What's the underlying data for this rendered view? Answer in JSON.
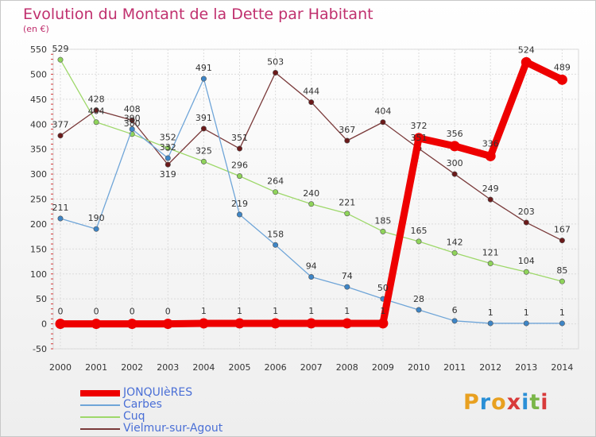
{
  "title": "Evolution du Montant de la Dette par Habitant",
  "unit": "(en €)",
  "logo": "Proxiti",
  "logo_colors": [
    "#e8a020",
    "#2a8fd6",
    "#e8a020",
    "#d83a3a",
    "#2a8fd6",
    "#7ab648",
    "#d83a3a"
  ],
  "chart_data": {
    "type": "line",
    "x": [
      "2000",
      "2001",
      "2002",
      "2003",
      "2004",
      "2005",
      "2006",
      "2007",
      "2008",
      "2009",
      "2010",
      "2011",
      "2012",
      "2013",
      "2014"
    ],
    "ylim": [
      -50,
      550
    ],
    "yticks": [
      -50,
      0,
      50,
      100,
      150,
      200,
      250,
      300,
      350,
      400,
      450,
      500,
      550
    ],
    "grid": true,
    "legend_position": "bottom-left",
    "series": [
      {
        "name": "Vielmur-sur-Agout",
        "color": "#6b1a1a",
        "line_color": "#7a3a3a",
        "values": [
          377,
          428,
          408,
          319,
          391,
          351,
          503,
          444,
          367,
          404,
          351,
          300,
          249,
          203,
          167
        ],
        "labels": [
          "377",
          "428",
          "408",
          "319",
          "391",
          "351",
          "503",
          "444",
          "367",
          "404",
          "351",
          "300",
          "249",
          "203",
          "167"
        ]
      },
      {
        "name": "Cuq",
        "color": "#8fd45a",
        "line_color": "#9ed86a",
        "values": [
          529,
          404,
          380,
          352,
          325,
          296,
          264,
          240,
          221,
          185,
          165,
          142,
          121,
          104,
          85
        ],
        "labels": [
          "529",
          "404",
          "380",
          "352",
          "325",
          "296",
          "264",
          "240",
          "221",
          "185",
          "165",
          "142",
          "121",
          "104",
          "85"
        ]
      },
      {
        "name": "Carbes",
        "color": "#3d85c6",
        "line_color": "#6fa5d8",
        "values": [
          211,
          190,
          390,
          332,
          491,
          219,
          158,
          94,
          74,
          50,
          28,
          6,
          1,
          1,
          1
        ],
        "labels": [
          "211",
          "190",
          "390",
          "332",
          "491",
          "219",
          "158",
          "94",
          "74",
          "50",
          "28",
          "6",
          "1",
          "1",
          "1"
        ]
      },
      {
        "name": "JONQUIèRES",
        "color": "#ee0000",
        "line_color": "#ee0000",
        "values": [
          0,
          0,
          0,
          0,
          1,
          1,
          1,
          1,
          1,
          1,
          372,
          356,
          336,
          524,
          489
        ],
        "labels": [
          "0",
          "0",
          "0",
          "0",
          "1",
          "1",
          "1",
          "1",
          "1",
          "1",
          "372",
          "356",
          "336",
          "524",
          "489"
        ]
      }
    ],
    "legend": [
      "JONQUIèRES",
      "Carbes",
      "Cuq",
      "Vielmur-sur-Agout"
    ]
  }
}
